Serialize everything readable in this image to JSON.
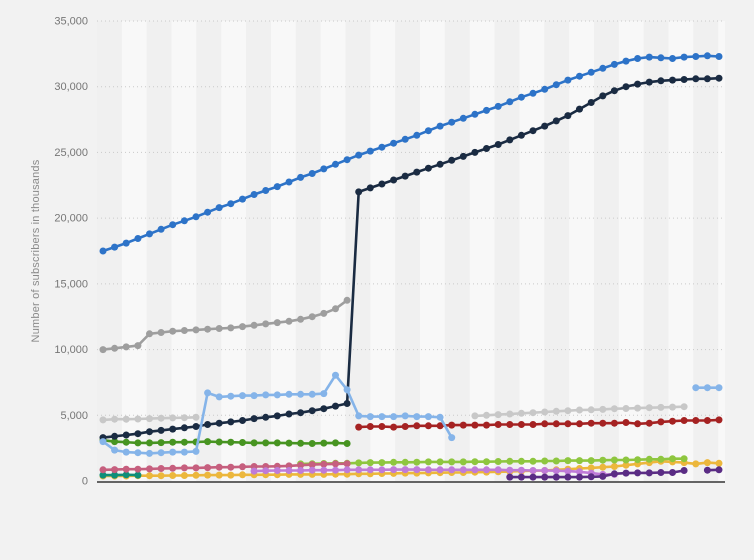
{
  "page": {
    "background_color": "#f2f2f2",
    "plot_band_light": "#f8f8f8",
    "plot_band_dark": "#f0f0f0",
    "gridline_color": "#c9c9c9",
    "axis_line_color": "#4f4f4f",
    "tick_label_color": "#767676"
  },
  "chart_data": {
    "type": "line",
    "title": "",
    "xlabel": "",
    "ylabel": "Number of subscribers in thousands",
    "x_count": 54,
    "x_tick_labels": [],
    "ylim": [
      0,
      35000
    ],
    "ytick_interval": 5000,
    "ytick_labels": [
      "0",
      "5,000",
      "10,000",
      "15,000",
      "20,000",
      "25,000",
      "30,000",
      "35,000"
    ],
    "grid": "horizontal-dotted",
    "legend_position": "none",
    "background_bands": "alternating-vertical",
    "marker": "circle",
    "note_nulls": "null = no data point shown at that x position",
    "series": [
      {
        "name": "silver",
        "color": "#c8c8c8",
        "values": [
          4650,
          4700,
          4700,
          4720,
          4750,
          4780,
          4800,
          4820,
          4850,
          null,
          null,
          null,
          null,
          null,
          null,
          null,
          null,
          null,
          null,
          null,
          null,
          null,
          null,
          null,
          null,
          null,
          null,
          null,
          null,
          null,
          null,
          null,
          4950,
          5000,
          5050,
          5100,
          5150,
          5200,
          5250,
          5300,
          5350,
          5400,
          5420,
          5450,
          5500,
          5520,
          5550,
          5580,
          5600,
          5620,
          5650,
          null,
          null,
          null
        ]
      },
      {
        "name": "gray",
        "color": "#9e9e9e",
        "values": [
          10000,
          10100,
          10200,
          10300,
          11200,
          11300,
          11400,
          11450,
          11500,
          11550,
          11600,
          11650,
          11750,
          11850,
          11950,
          12050,
          12150,
          12300,
          12500,
          12750,
          13100,
          13750,
          null,
          null,
          null,
          null,
          null,
          null,
          null,
          null,
          null,
          null,
          null,
          null,
          null,
          null,
          null,
          null,
          null,
          null,
          null,
          null,
          null,
          null,
          null,
          null,
          null,
          null,
          null,
          null,
          null,
          null,
          null,
          null
        ]
      },
      {
        "name": "green",
        "color": "#479421",
        "values": [
          3100,
          3000,
          2950,
          2900,
          2900,
          2920,
          2950,
          2950,
          2970,
          3000,
          2970,
          2950,
          2930,
          2900,
          2900,
          2900,
          2880,
          2870,
          2850,
          2880,
          2900,
          2850,
          null,
          null,
          null,
          null,
          null,
          null,
          null,
          null,
          null,
          null,
          null,
          null,
          null,
          null,
          null,
          null,
          null,
          null,
          null,
          null,
          null,
          null,
          null,
          null,
          null,
          null,
          null,
          null,
          null,
          null,
          null,
          null
        ]
      },
      {
        "name": "yellow",
        "color": "#ecb73c",
        "values": [
          380,
          380,
          380,
          400,
          400,
          400,
          420,
          420,
          430,
          450,
          450,
          450,
          470,
          470,
          480,
          480,
          500,
          500,
          500,
          500,
          520,
          520,
          550,
          550,
          570,
          580,
          600,
          600,
          620,
          630,
          650,
          650,
          670,
          680,
          700,
          720,
          750,
          780,
          800,
          850,
          900,
          950,
          1000,
          1050,
          1100,
          1200,
          1300,
          1400,
          1500,
          1450,
          1400,
          1300,
          1400,
          1350
        ]
      },
      {
        "name": "teal",
        "color": "#0f8e79",
        "values": [
          450,
          450,
          470,
          450,
          null,
          null,
          null,
          null,
          null,
          null,
          null,
          null,
          null,
          null,
          null,
          null,
          null,
          null,
          null,
          null,
          null,
          null,
          null,
          null,
          null,
          null,
          null,
          null,
          null,
          null,
          null,
          null,
          null,
          null,
          null,
          null,
          null,
          null,
          null,
          null,
          null,
          null,
          null,
          null,
          null,
          null,
          null,
          null,
          null,
          null,
          null,
          null,
          null,
          null
        ]
      },
      {
        "name": "lime",
        "color": "#8ec63f",
        "values": [
          null,
          null,
          null,
          null,
          null,
          null,
          null,
          null,
          null,
          null,
          null,
          null,
          null,
          null,
          null,
          null,
          null,
          1300,
          1320,
          1330,
          1350,
          1350,
          1380,
          1400,
          1400,
          1420,
          1420,
          1430,
          1450,
          1450,
          1450,
          1450,
          1470,
          1470,
          1480,
          1500,
          1500,
          1500,
          1520,
          1520,
          1550,
          1550,
          1550,
          1580,
          1600,
          1600,
          1620,
          1650,
          1650,
          1700,
          1700,
          null,
          null,
          null
        ]
      },
      {
        "name": "pink",
        "color": "#c65f7e",
        "values": [
          850,
          870,
          900,
          900,
          920,
          950,
          970,
          1000,
          1000,
          1020,
          1050,
          1050,
          1080,
          1100,
          1100,
          1120,
          1150,
          1200,
          1250,
          1280,
          1300,
          1320,
          null,
          null,
          null,
          null,
          null,
          null,
          null,
          null,
          null,
          null,
          null,
          null,
          null,
          null,
          null,
          null,
          null,
          null,
          null,
          null,
          null,
          null,
          null,
          null,
          null,
          null,
          null,
          null,
          null,
          null,
          null,
          null
        ]
      },
      {
        "name": "orchid",
        "color": "#bf7bd8",
        "values": [
          null,
          null,
          null,
          null,
          null,
          null,
          null,
          null,
          null,
          null,
          null,
          null,
          null,
          750,
          780,
          800,
          800,
          800,
          820,
          820,
          820,
          850,
          850,
          850,
          850,
          870,
          870,
          870,
          850,
          850,
          850,
          850,
          850,
          850,
          850,
          820,
          820,
          800,
          800,
          780,
          750,
          700,
          600,
          500,
          500,
          null,
          null,
          null,
          null,
          null,
          null,
          null,
          null,
          null
        ]
      },
      {
        "name": "dark-purple",
        "color": "#5a2c84",
        "values": [
          null,
          null,
          null,
          null,
          null,
          null,
          null,
          null,
          null,
          null,
          null,
          null,
          null,
          null,
          null,
          null,
          null,
          null,
          null,
          null,
          null,
          null,
          null,
          null,
          null,
          null,
          null,
          null,
          null,
          null,
          null,
          null,
          null,
          null,
          null,
          300,
          300,
          300,
          300,
          300,
          300,
          300,
          320,
          350,
          550,
          600,
          620,
          620,
          650,
          650,
          800,
          null,
          820,
          850
        ]
      },
      {
        "name": "dark-red",
        "color": "#a52222",
        "values": [
          null,
          null,
          null,
          null,
          null,
          null,
          null,
          null,
          null,
          null,
          null,
          null,
          null,
          null,
          null,
          null,
          null,
          null,
          null,
          null,
          null,
          null,
          4100,
          4150,
          4150,
          4100,
          4150,
          4200,
          4200,
          4200,
          4250,
          4250,
          4250,
          4250,
          4300,
          4300,
          4300,
          4300,
          4350,
          4350,
          4350,
          4350,
          4400,
          4400,
          4400,
          4450,
          4350,
          4400,
          4500,
          4550,
          4600,
          4600,
          4600,
          4650
        ]
      },
      {
        "name": "navy",
        "color": "#1a2b42",
        "values": [
          3300,
          3400,
          3500,
          3600,
          3750,
          3850,
          3950,
          4050,
          4150,
          4300,
          4400,
          4500,
          4600,
          4750,
          4850,
          4950,
          5100,
          5200,
          5350,
          5500,
          5700,
          5900,
          22000,
          22300,
          22600,
          22900,
          23200,
          23500,
          23800,
          24100,
          24400,
          24700,
          25000,
          25300,
          25600,
          25950,
          26300,
          26650,
          27000,
          27400,
          27800,
          28300,
          28800,
          29300,
          29700,
          30000,
          30200,
          30350,
          30450,
          30500,
          30550,
          30600,
          30600,
          30650
        ]
      },
      {
        "name": "bright-blue",
        "color": "#2d73c8",
        "values": [
          17500,
          17800,
          18100,
          18450,
          18800,
          19150,
          19500,
          19800,
          20100,
          20450,
          20800,
          21100,
          21450,
          21800,
          22100,
          22400,
          22750,
          23100,
          23400,
          23750,
          24100,
          24450,
          24800,
          25100,
          25400,
          25700,
          26000,
          26300,
          26650,
          27000,
          27300,
          27600,
          27900,
          28200,
          28500,
          28850,
          29200,
          29500,
          29800,
          30150,
          30500,
          30800,
          31100,
          31400,
          31700,
          31950,
          32150,
          32250,
          32200,
          32150,
          32250,
          32300,
          32350,
          32300
        ]
      },
      {
        "name": "light-blue",
        "color": "#85b4e9",
        "values": [
          3000,
          2350,
          2200,
          2150,
          2100,
          2150,
          2200,
          2200,
          2250,
          6700,
          6400,
          6450,
          6500,
          6500,
          6550,
          6550,
          6600,
          6600,
          6600,
          6650,
          8050,
          6950,
          4950,
          4900,
          4900,
          4900,
          4950,
          4900,
          4900,
          4850,
          3300,
          null,
          null,
          null,
          null,
          null,
          null,
          null,
          null,
          null,
          null,
          null,
          null,
          null,
          null,
          null,
          null,
          null,
          null,
          null,
          null,
          7100,
          7100,
          7100
        ]
      }
    ]
  }
}
